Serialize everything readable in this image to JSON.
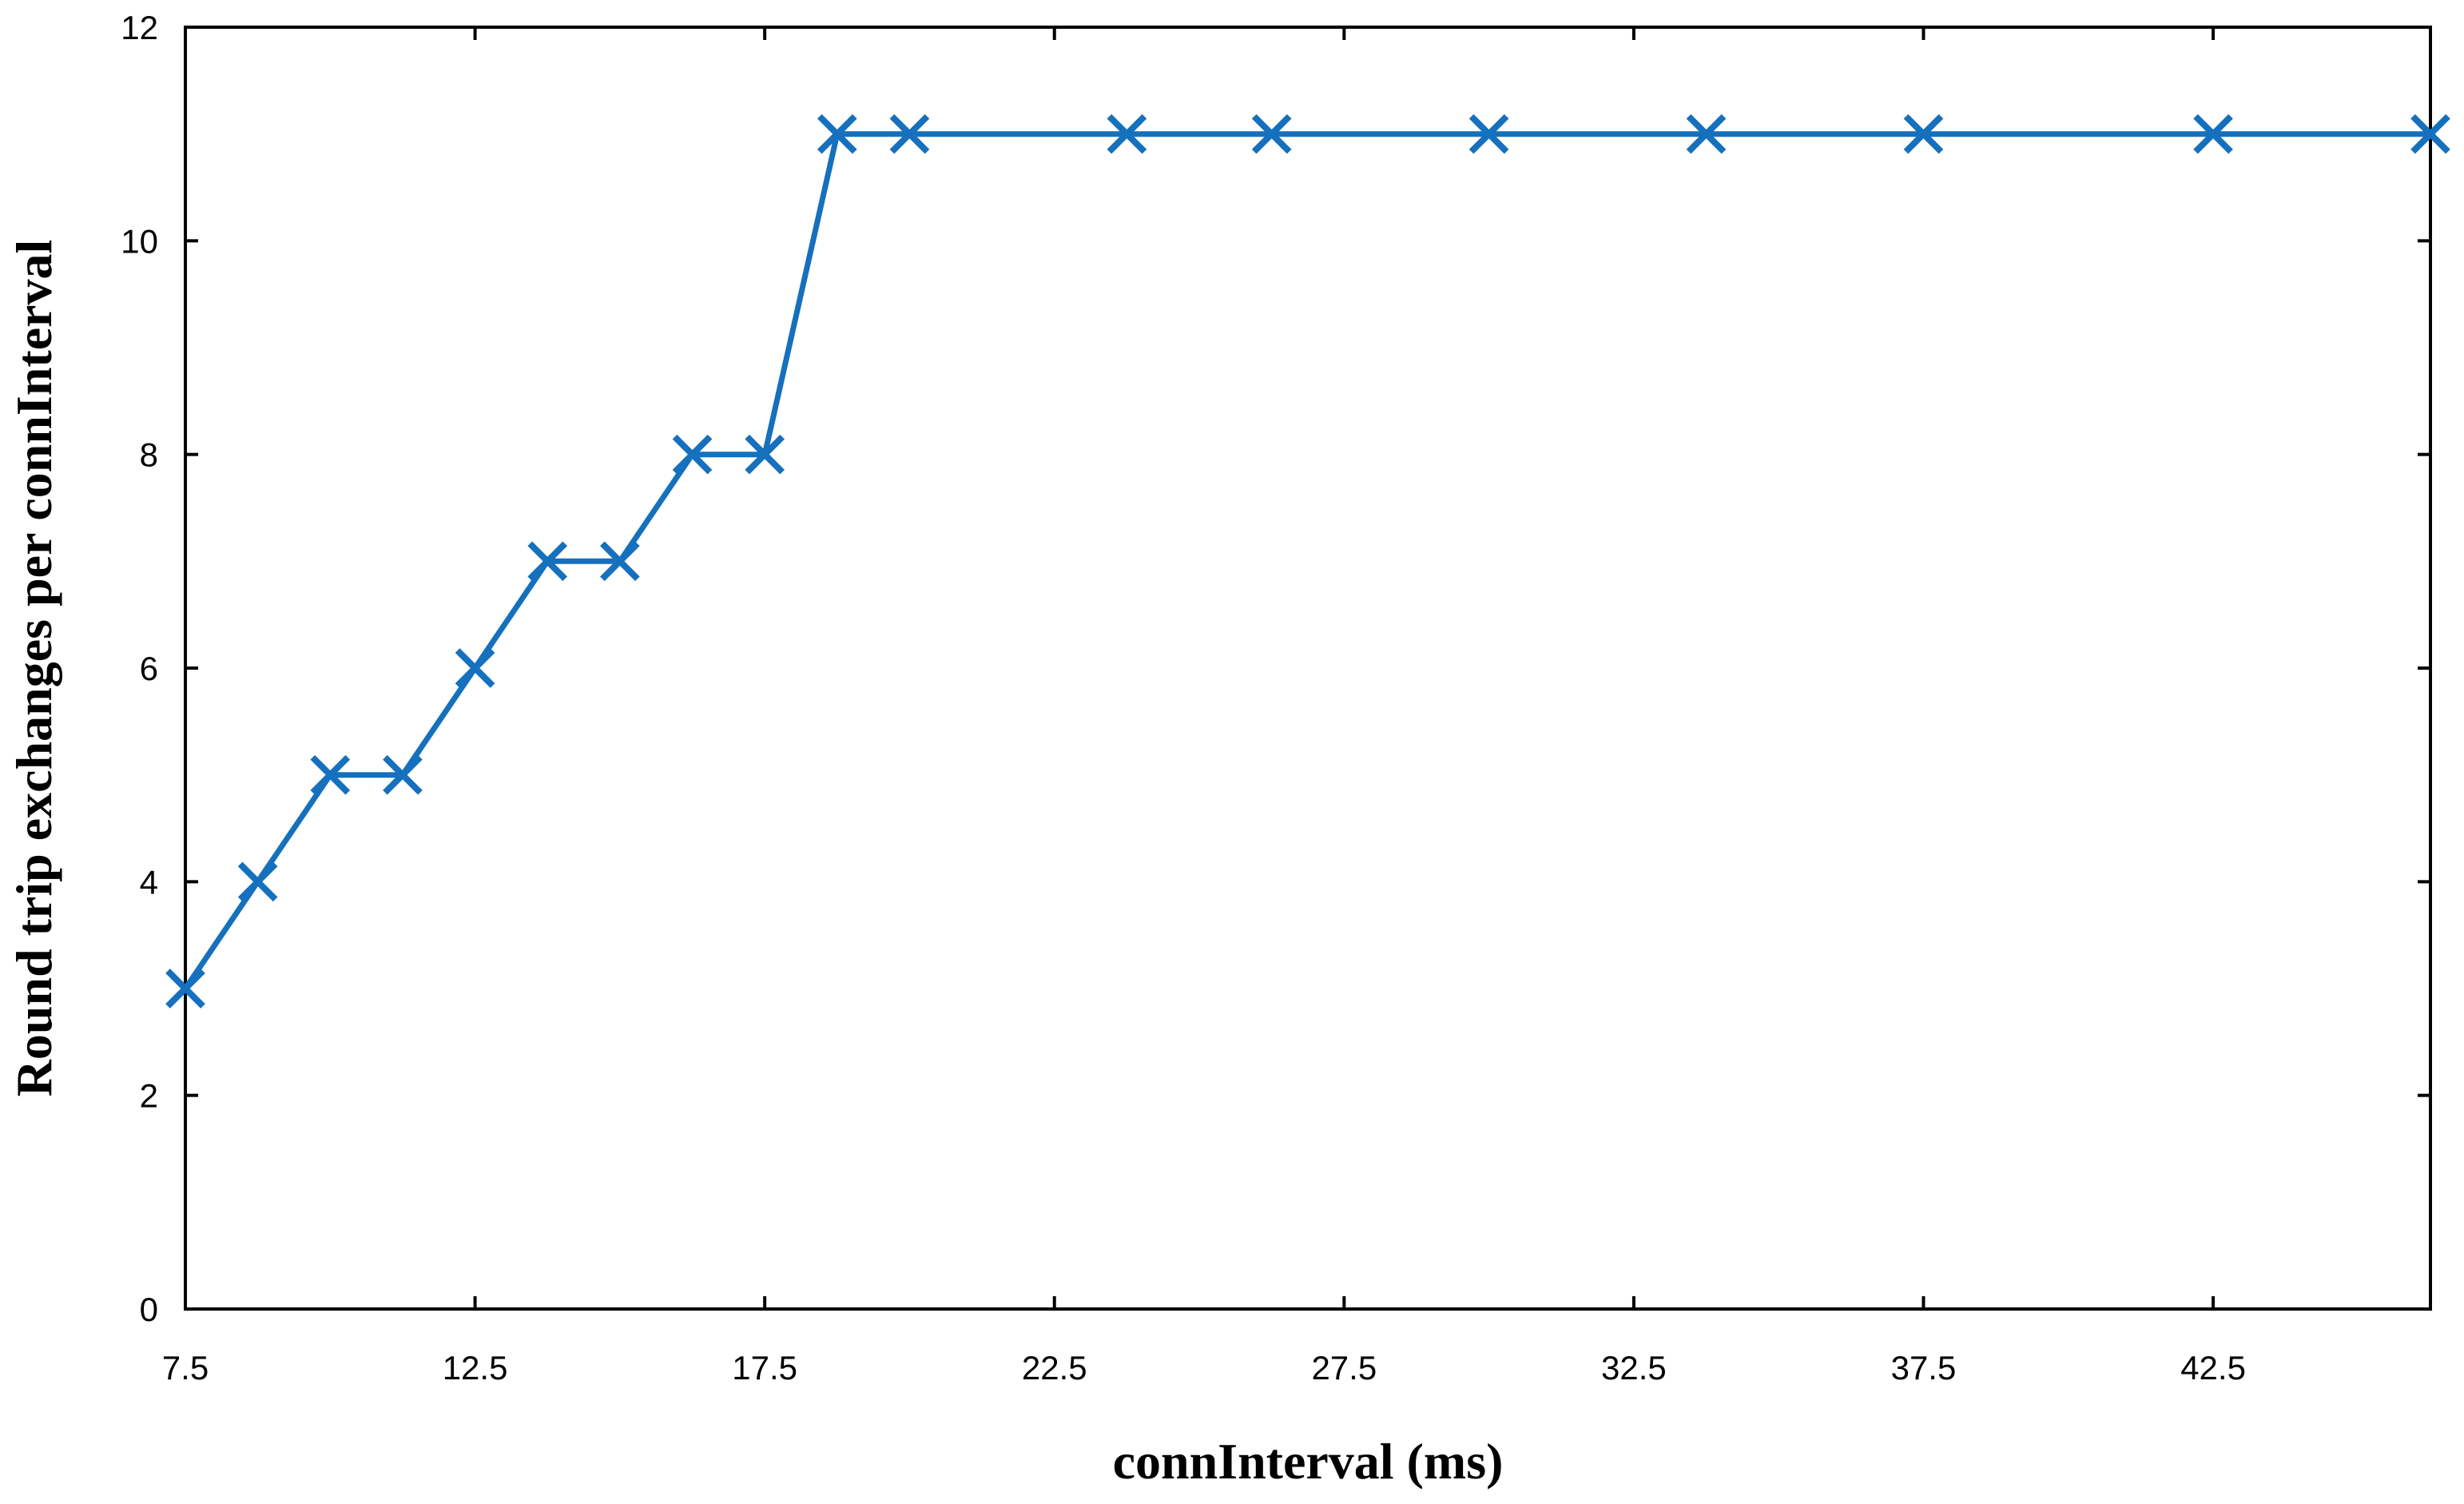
{
  "chart_data": {
    "type": "line",
    "title": "",
    "xlabel": "connInterval (ms)",
    "ylabel": "Round trip exchanges per connInterval",
    "xlim": [
      7.5,
      46.25
    ],
    "ylim": [
      0,
      12
    ],
    "x_ticks": [
      "7.5",
      "12.5",
      "17.5",
      "22.5",
      "27.5",
      "32.5",
      "37.5",
      "42.5"
    ],
    "x_tick_values": [
      7.5,
      12.5,
      17.5,
      22.5,
      27.5,
      32.5,
      37.5,
      42.5
    ],
    "y_ticks": [
      "0",
      "2",
      "4",
      "6",
      "8",
      "10",
      "12"
    ],
    "y_tick_values": [
      0,
      2,
      4,
      6,
      8,
      10,
      12
    ],
    "grid": false,
    "marker": "x",
    "series": [
      {
        "color": "#1570BE",
        "x": [
          7.5,
          8.75,
          10,
          11.25,
          12.5,
          13.75,
          15,
          16.25,
          17.5,
          18.75,
          20,
          23.75,
          26.25,
          30,
          33.75,
          37.5,
          42.5,
          46.25
        ],
        "y": [
          3,
          4,
          5,
          5,
          6,
          7,
          7,
          8,
          8,
          11,
          11,
          11,
          11,
          11,
          11,
          11,
          11,
          11
        ]
      }
    ]
  }
}
